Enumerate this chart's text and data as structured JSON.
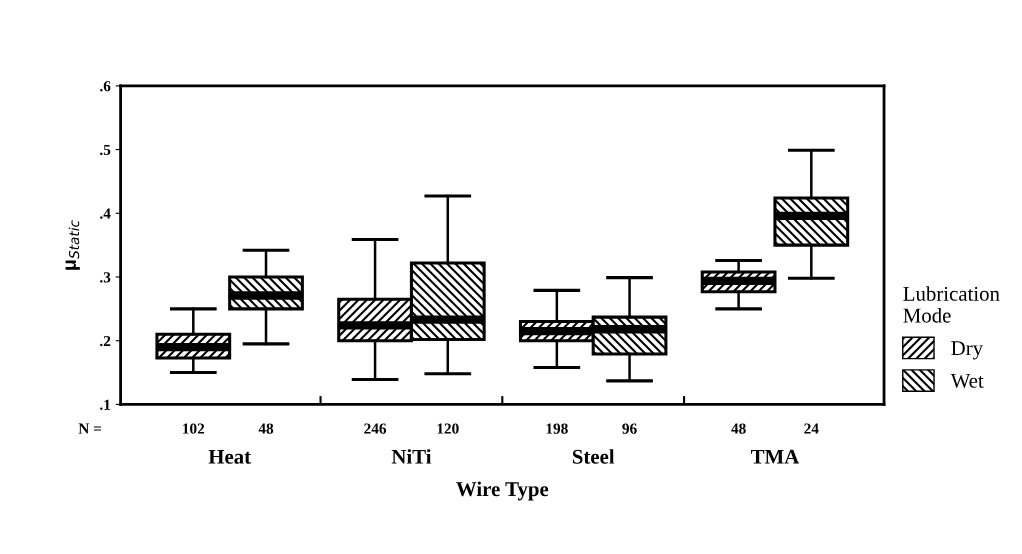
{
  "chart_data": {
    "type": "box",
    "xlabel": "Wire Type",
    "ylabel": "μ$_{Static}$",
    "legend_title": "Lubrication\nMode",
    "legend": "right",
    "grid": false,
    "categories": [
      "Heat",
      "NiTi",
      "Steel",
      "TMA"
    ],
    "ylim": [
      0.1,
      0.6
    ],
    "yticks": [
      {
        "value": 0.1,
        "label": ".1"
      },
      {
        "value": 0.2,
        "label": ".2"
      },
      {
        "value": 0.3,
        "label": ".3"
      },
      {
        "value": 0.4,
        "label": ".4"
      },
      {
        "value": 0.5,
        "label": ".5"
      },
      {
        "value": 0.6,
        "label": ".6"
      }
    ],
    "series": [
      {
        "name": "Dry",
        "color": "#000000",
        "boxes": [
          {
            "low": 0.15,
            "q1": 0.173,
            "median": 0.19,
            "q3": 0.21,
            "high": 0.25
          },
          {
            "low": 0.139,
            "q1": 0.2,
            "median": 0.224,
            "q3": 0.265,
            "high": 0.359
          },
          {
            "low": 0.158,
            "q1": 0.2,
            "median": 0.215,
            "q3": 0.23,
            "high": 0.279
          },
          {
            "low": 0.25,
            "q1": 0.277,
            "median": 0.294,
            "q3": 0.308,
            "high": 0.326
          }
        ]
      },
      {
        "name": "Wet",
        "color": "#000000",
        "boxes": [
          {
            "low": 0.195,
            "q1": 0.25,
            "median": 0.271,
            "q3": 0.3,
            "high": 0.342
          },
          {
            "low": 0.148,
            "q1": 0.202,
            "median": 0.233,
            "q3": 0.322,
            "high": 0.427
          },
          {
            "low": 0.137,
            "q1": 0.179,
            "median": 0.218,
            "q3": 0.237,
            "high": 0.299
          },
          {
            "low": 0.298,
            "q1": 0.35,
            "median": 0.396,
            "q3": 0.424,
            "high": 0.499
          }
        ]
      }
    ],
    "annotations": [
      "N =",
      "102",
      "48",
      "246",
      "120",
      "198",
      "96",
      "48",
      "24"
    ]
  }
}
